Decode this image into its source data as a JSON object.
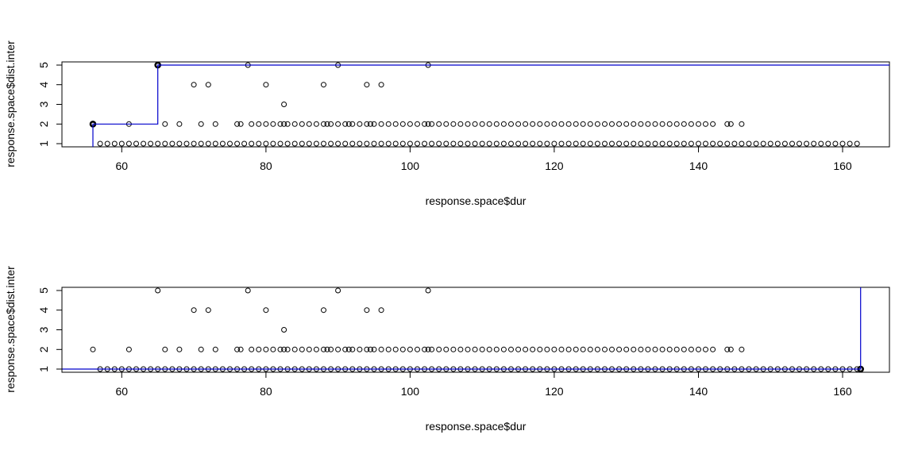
{
  "charts": [
    {
      "id": "top",
      "xlabel": "response.space$dur",
      "ylabel": "response.space$dist.inter",
      "x_ticks": [
        "60",
        "80",
        "100",
        "120",
        "140",
        "160"
      ],
      "y_ticks": [
        "1",
        "2",
        "3",
        "4",
        "5"
      ],
      "xlim": [
        51.7,
        166.5
      ],
      "ylim": [
        0.84,
        5.16
      ]
    },
    {
      "id": "bottom",
      "xlabel": "response.space$dur",
      "ylabel": "response.space$dist.inter",
      "x_ticks": [
        "60",
        "80",
        "100",
        "120",
        "140",
        "160"
      ],
      "y_ticks": [
        "1",
        "2",
        "3",
        "4",
        "5"
      ],
      "xlim": [
        51.7,
        166.5
      ],
      "ylim": [
        0.84,
        5.16
      ]
    }
  ],
  "chart_data": [
    {
      "type": "scatter",
      "xlabel": "response.space$dur",
      "ylabel": "response.space$dist.inter",
      "xlim": [
        51.7,
        166.5
      ],
      "ylim": [
        0.84,
        5.16
      ],
      "x_tick_values": [
        60,
        80,
        100,
        120,
        140,
        160
      ],
      "y_tick_values": [
        1,
        2,
        3,
        4,
        5
      ],
      "grid": false,
      "points": {
        "y1": {
          "from": 57,
          "to": 162.5,
          "step": 1
        },
        "y2": [
          56,
          61,
          66,
          68,
          71,
          73,
          76,
          76.5,
          78,
          79,
          80,
          81,
          82,
          82.5,
          83,
          84,
          85,
          86,
          87,
          88,
          88.5,
          89,
          90,
          91,
          91.5,
          92,
          93,
          94,
          94.5,
          95,
          96,
          97,
          98,
          99,
          100,
          101,
          102,
          102.5,
          103,
          104,
          105,
          106,
          107,
          108,
          109,
          110,
          111,
          112,
          113,
          114,
          115,
          116,
          117,
          118,
          119,
          120,
          121,
          122,
          123,
          124,
          125,
          126,
          127,
          128,
          129,
          130,
          131,
          132,
          133,
          134,
          135,
          136,
          137,
          138,
          139,
          140,
          141,
          142,
          144,
          144.5,
          146
        ],
        "y3": [
          82.5
        ],
        "y4": [
          70,
          72,
          80,
          88,
          94,
          96
        ],
        "y5": [
          65,
          77.5,
          90,
          102.5
        ]
      },
      "highlight_points": [
        [
          56,
          2
        ],
        [
          65,
          5
        ]
      ],
      "step_line": {
        "color": "#0000cc",
        "path": [
          [
            56,
            0.84
          ],
          [
            56,
            2
          ],
          [
            65,
            2
          ],
          [
            65,
            5
          ],
          [
            166.5,
            5
          ]
        ]
      }
    },
    {
      "type": "scatter",
      "xlabel": "response.space$dur",
      "ylabel": "response.space$dist.inter",
      "xlim": [
        51.7,
        166.5
      ],
      "ylim": [
        0.84,
        5.16
      ],
      "x_tick_values": [
        60,
        80,
        100,
        120,
        140,
        160
      ],
      "y_tick_values": [
        1,
        2,
        3,
        4,
        5
      ],
      "grid": false,
      "points": {
        "y1": {
          "from": 57,
          "to": 162.5,
          "step": 1
        },
        "y2": [
          56,
          61,
          66,
          68,
          71,
          73,
          76,
          76.5,
          78,
          79,
          80,
          81,
          82,
          82.5,
          83,
          84,
          85,
          86,
          87,
          88,
          88.5,
          89,
          90,
          91,
          91.5,
          92,
          93,
          94,
          94.5,
          95,
          96,
          97,
          98,
          99,
          100,
          101,
          102,
          102.5,
          103,
          104,
          105,
          106,
          107,
          108,
          109,
          110,
          111,
          112,
          113,
          114,
          115,
          116,
          117,
          118,
          119,
          120,
          121,
          122,
          123,
          124,
          125,
          126,
          127,
          128,
          129,
          130,
          131,
          132,
          133,
          134,
          135,
          136,
          137,
          138,
          139,
          140,
          141,
          142,
          144,
          144.5,
          146
        ],
        "y3": [
          82.5
        ],
        "y4": [
          70,
          72,
          80,
          88,
          94,
          96
        ],
        "y5": [
          65,
          77.5,
          90,
          102.5
        ]
      },
      "highlight_points": [
        [
          162.5,
          1
        ]
      ],
      "step_line": {
        "color": "#0000cc",
        "path": [
          [
            51.7,
            1
          ],
          [
            162.5,
            1
          ],
          [
            162.5,
            5.16
          ]
        ]
      }
    }
  ]
}
